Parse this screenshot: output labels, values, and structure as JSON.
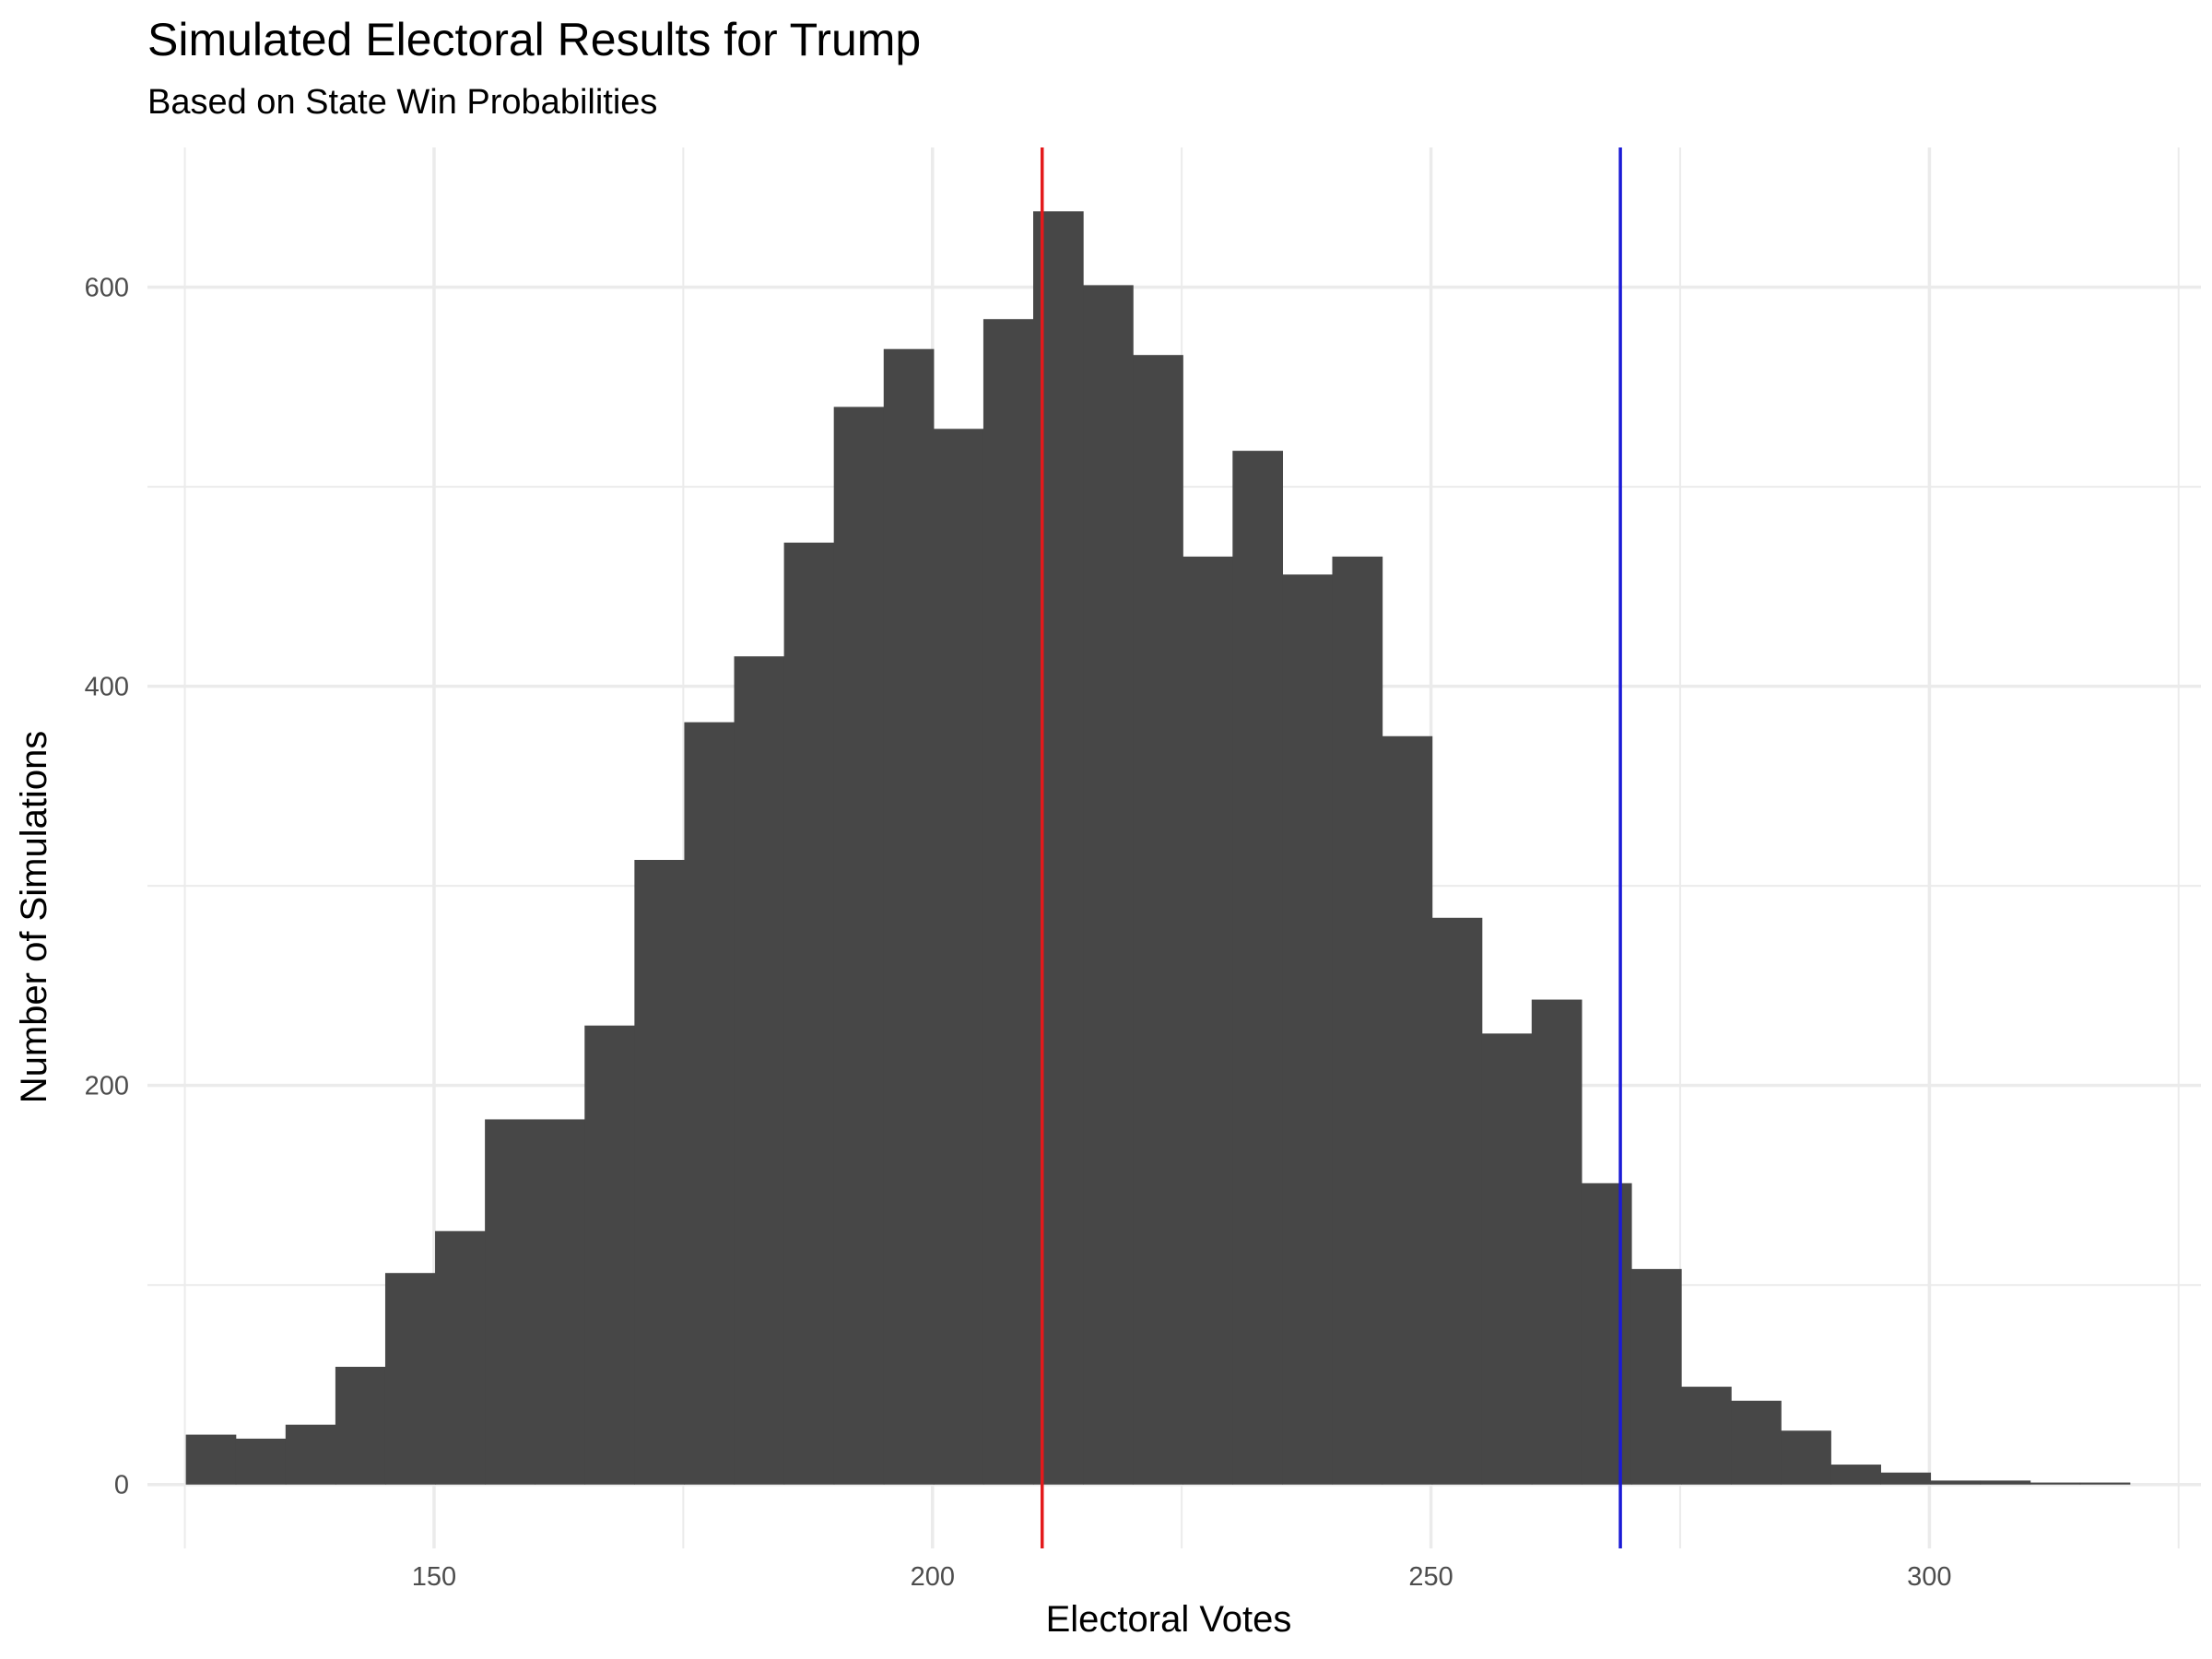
{
  "chart_data": {
    "type": "bar",
    "title": "Simulated Electoral Results for Trump",
    "subtitle": "Based on State Win Probabilities",
    "xlabel": "Electoral Votes",
    "ylabel": "Number of Simulations",
    "xlim": [
      121.25,
      327.24
    ],
    "ylim": [
      -32,
      670
    ],
    "x_ticks": [
      150,
      200,
      250,
      300
    ],
    "y_ticks": [
      0,
      200,
      400,
      600
    ],
    "grid": true,
    "bin_width": 5,
    "bins": [
      {
        "start": 125.1,
        "count": 25
      },
      {
        "start": 130.1,
        "count": 23
      },
      {
        "start": 135.1,
        "count": 30
      },
      {
        "start": 140.1,
        "count": 59
      },
      {
        "start": 145.1,
        "count": 106
      },
      {
        "start": 150.1,
        "count": 127
      },
      {
        "start": 155.1,
        "count": 183
      },
      {
        "start": 160.1,
        "count": 183
      },
      {
        "start": 165.1,
        "count": 230
      },
      {
        "start": 170.1,
        "count": 313
      },
      {
        "start": 175.1,
        "count": 382
      },
      {
        "start": 180.1,
        "count": 415
      },
      {
        "start": 185.1,
        "count": 472
      },
      {
        "start": 190.1,
        "count": 540
      },
      {
        "start": 195.1,
        "count": 569
      },
      {
        "start": 200.1,
        "count": 529
      },
      {
        "start": 205.1,
        "count": 584
      },
      {
        "start": 210.1,
        "count": 638
      },
      {
        "start": 215.1,
        "count": 601
      },
      {
        "start": 220.1,
        "count": 566
      },
      {
        "start": 225.1,
        "count": 465
      },
      {
        "start": 230.1,
        "count": 518
      },
      {
        "start": 235.1,
        "count": 456
      },
      {
        "start": 240.1,
        "count": 465
      },
      {
        "start": 245.1,
        "count": 375
      },
      {
        "start": 250.1,
        "count": 284
      },
      {
        "start": 255.1,
        "count": 226
      },
      {
        "start": 260.1,
        "count": 243
      },
      {
        "start": 265.1,
        "count": 151
      },
      {
        "start": 270.1,
        "count": 108
      },
      {
        "start": 275.1,
        "count": 49
      },
      {
        "start": 280.1,
        "count": 42
      },
      {
        "start": 285.1,
        "count": 27
      },
      {
        "start": 290.1,
        "count": 10
      },
      {
        "start": 295.1,
        "count": 6
      },
      {
        "start": 300.1,
        "count": 2
      },
      {
        "start": 305.1,
        "count": 2
      },
      {
        "start": 310.1,
        "count": 1
      },
      {
        "start": 315.1,
        "count": 1
      }
    ],
    "reference_lines": [
      {
        "x": 211,
        "color": "#e31a1c"
      },
      {
        "x": 269,
        "color": "#1a1ad6"
      }
    ],
    "bar_color": "#474747",
    "grid_color": "#ebebeb"
  }
}
